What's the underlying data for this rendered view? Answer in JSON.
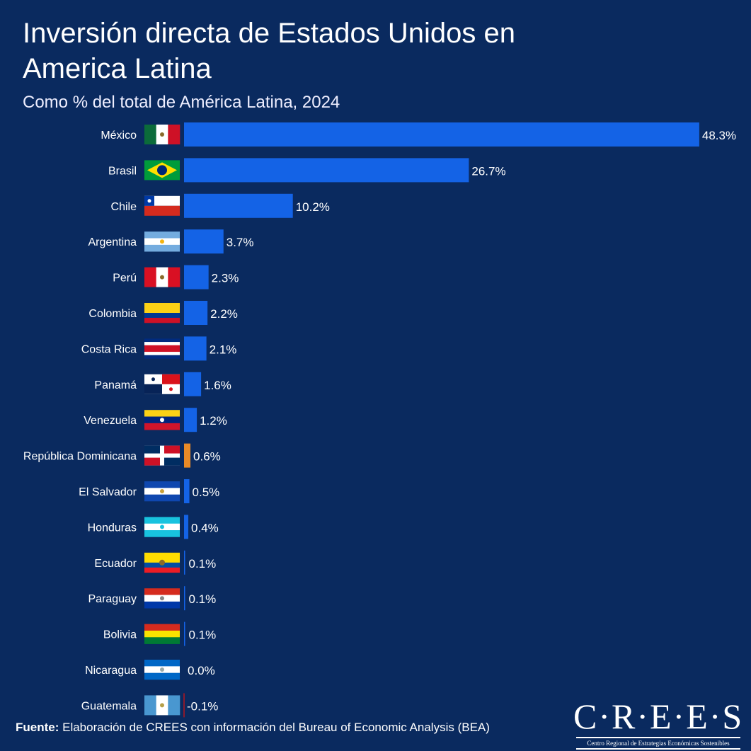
{
  "header": {
    "title": "Inversión directa de Estados Unidos en America Latina",
    "subtitle": "Como % del total de América Latina, 2024"
  },
  "colors": {
    "background": "#0a2a5f",
    "bar": "#1463e6",
    "highlight": "#e98a27",
    "negative": "#8b1a2e"
  },
  "chart_data": {
    "type": "bar",
    "orientation": "horizontal",
    "title": "Inversión directa de Estados Unidos en America Latina",
    "subtitle": "Como % del total de América Latina, 2024",
    "xlabel": "",
    "ylabel": "",
    "categories": [
      "México",
      "Brasil",
      "Chile",
      "Argentina",
      "Perú",
      "Colombia",
      "Costa Rica",
      "Panamá",
      "Venezuela",
      "República Dominicana",
      "El Salvador",
      "Honduras",
      "Ecuador",
      "Paraguay",
      "Bolivia",
      "Nicaragua",
      "Guatemala"
    ],
    "values": [
      48.3,
      26.7,
      10.2,
      3.7,
      2.3,
      2.2,
      2.1,
      1.6,
      1.2,
      0.6,
      0.5,
      0.4,
      0.1,
      0.1,
      0.1,
      0.0,
      -0.1
    ],
    "labels": [
      "48.3%",
      "26.7%",
      "10.2%",
      "3.7%",
      "2.3%",
      "2.2%",
      "2.1%",
      "1.6%",
      "1.2%",
      "0.6%",
      "0.5%",
      "0.4%",
      "0.1%",
      "0.1%",
      "0.1%",
      "0.0%",
      "-0.1%"
    ],
    "highlight": "República Dominicana",
    "flags": [
      "mexico-flag-icon",
      "brazil-flag-icon",
      "chile-flag-icon",
      "argentina-flag-icon",
      "peru-flag-icon",
      "colombia-flag-icon",
      "costa-rica-flag-icon",
      "panama-flag-icon",
      "venezuela-flag-icon",
      "dominican-republic-flag-icon",
      "el-salvador-flag-icon",
      "honduras-flag-icon",
      "ecuador-flag-icon",
      "paraguay-flag-icon",
      "bolivia-flag-icon",
      "nicaragua-flag-icon",
      "guatemala-flag-icon"
    ],
    "grid": false,
    "legend": "none"
  },
  "footer": {
    "source_label": "Fuente:",
    "source_text": " Elaboración de CREES con información del Bureau of Economic Analysis (BEA)",
    "logo_text": "C·R·E·E·S",
    "logo_subtitle": "Centro Regional de Estrategias Económicas Sostenibles"
  }
}
